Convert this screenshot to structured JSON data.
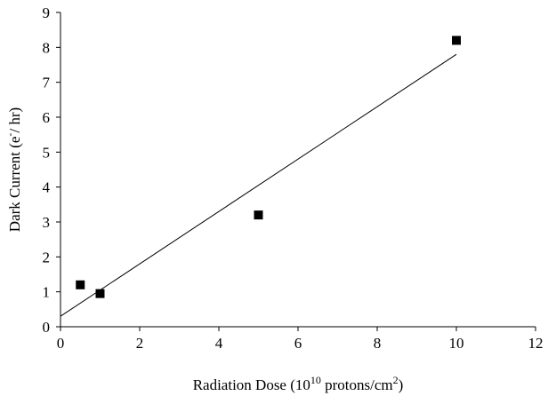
{
  "chart_data": {
    "type": "scatter",
    "x_label": [
      "Radiation Dose (10",
      "10",
      " protons/cm",
      "2",
      ")"
    ],
    "y_label": [
      "Dark Current (e",
      "-",
      "/ hr)"
    ],
    "series": [
      {
        "x": [
          0.5,
          1,
          5,
          10
        ],
        "values": [
          1.2,
          0.95,
          3.2,
          8.2
        ],
        "color": "#000000"
      }
    ],
    "trendline": {
      "x": [
        0,
        10
      ],
      "y": [
        0.3,
        7.8
      ],
      "color": "#000000"
    },
    "xlim": [
      0,
      12
    ],
    "xticks": [
      0,
      2,
      4,
      6,
      8,
      10,
      12
    ],
    "ylim": [
      0,
      9
    ],
    "yticks": [
      0,
      1,
      2,
      3,
      4,
      5,
      6,
      7,
      8,
      9
    ],
    "grid": false
  }
}
